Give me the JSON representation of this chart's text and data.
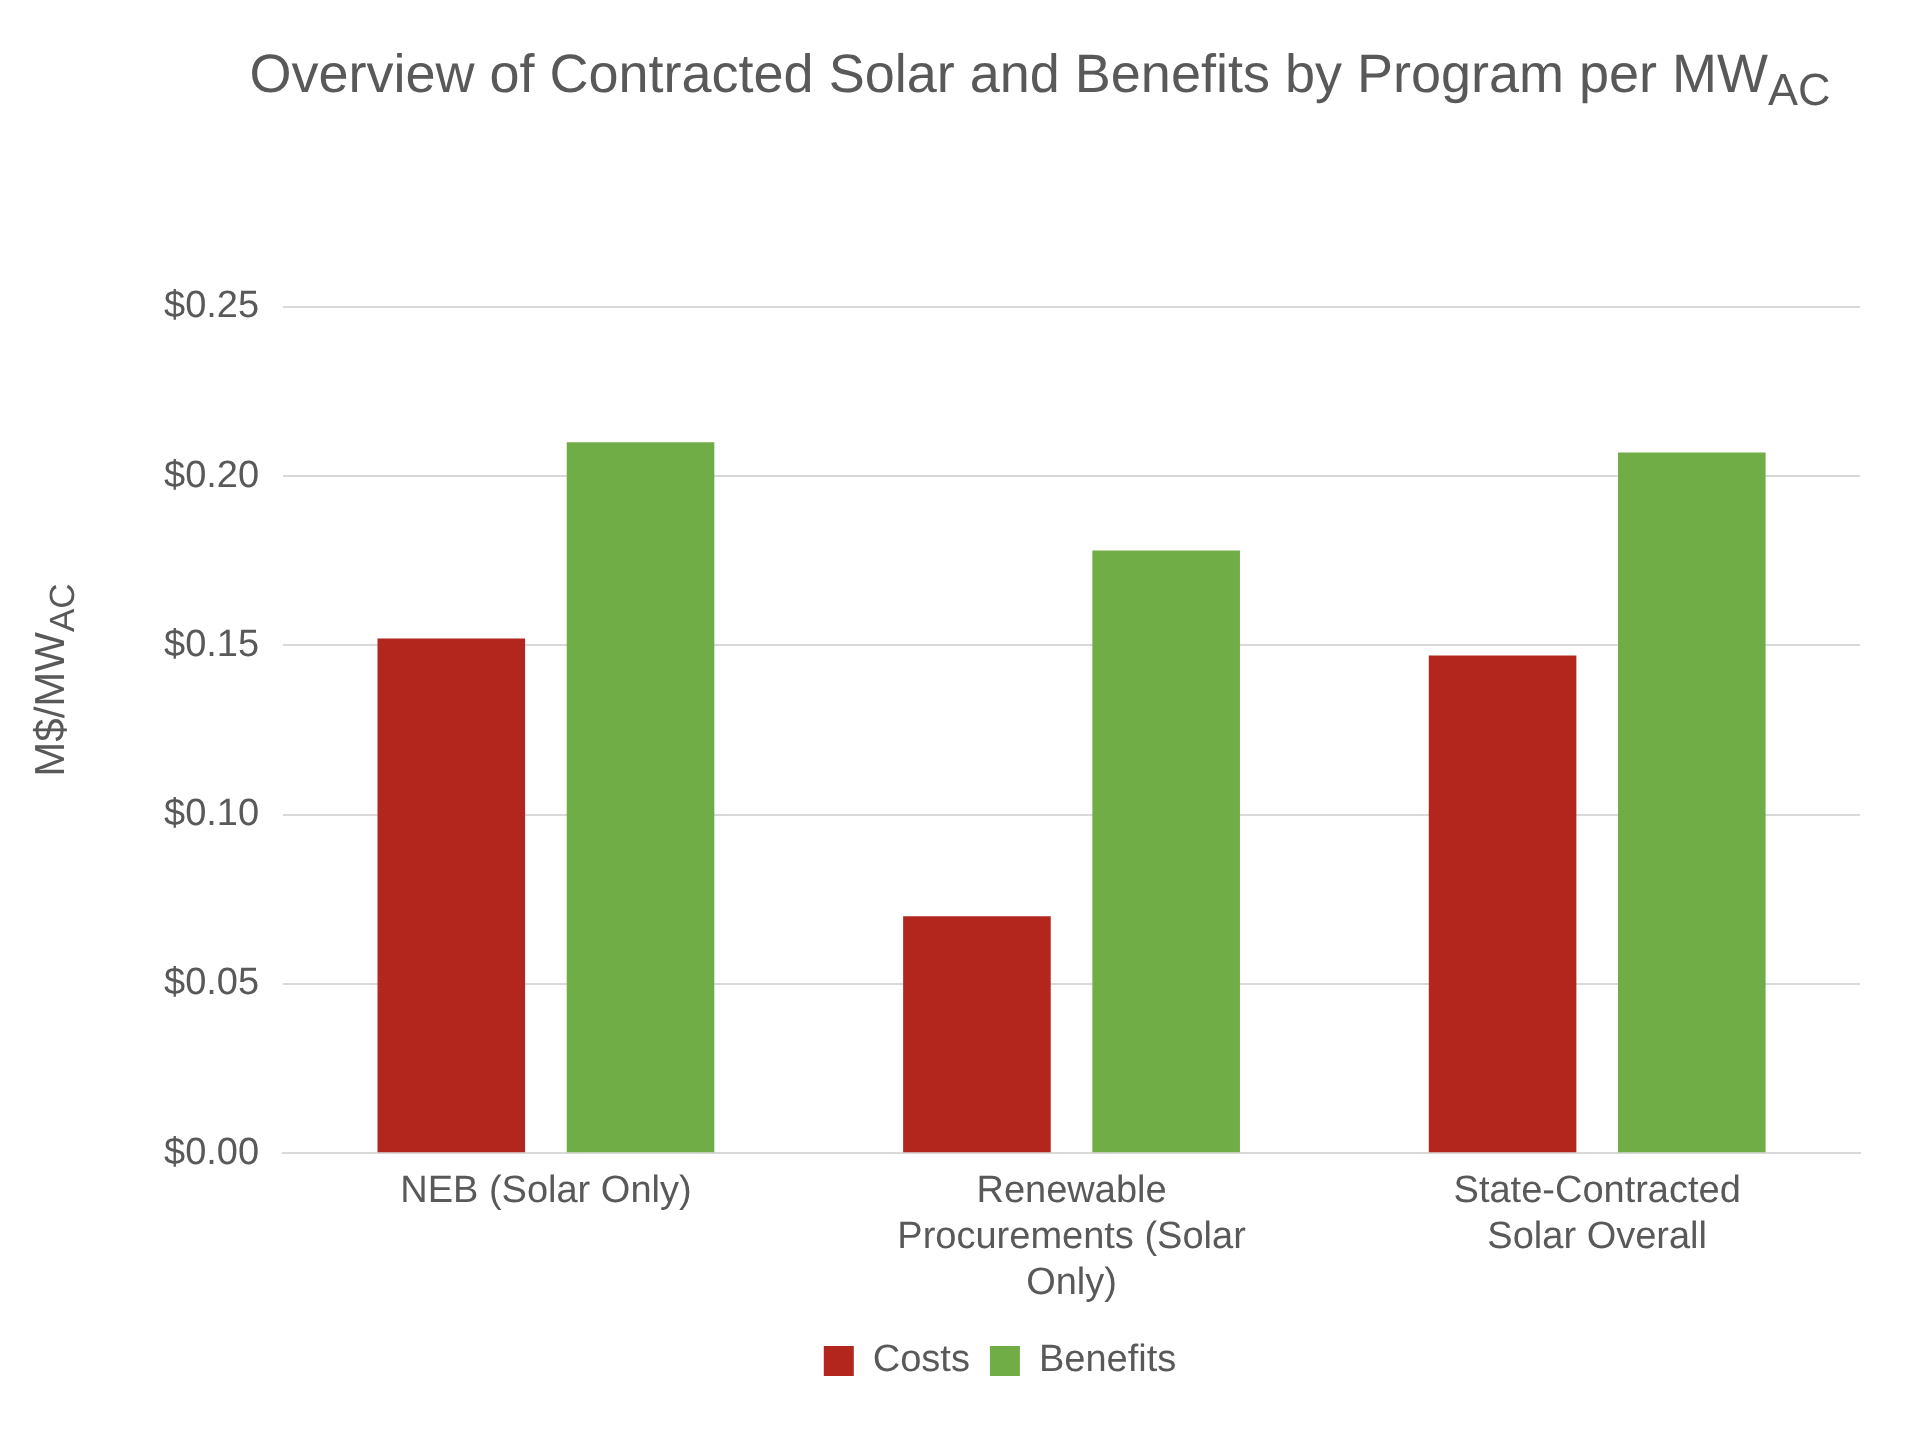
{
  "chart_data": {
    "type": "bar",
    "title": "Overview of Contracted Solar and Benefits by Program per MW$_{AC}$",
    "ylabel": "M$/MW$_{AC}$",
    "categories": [
      "NEB (Solar Only)",
      "Renewable Procurements (Solar Only)",
      "State-Contracted Solar Overall"
    ],
    "series": [
      {
        "name": "Costs",
        "color": "#b3261e",
        "values": [
          0.152,
          0.07,
          0.147
        ]
      },
      {
        "name": "Benefits",
        "color": "#70ad47",
        "values": [
          0.21,
          0.178,
          0.207
        ]
      }
    ],
    "ylim": [
      0,
      0.25
    ],
    "yticks": [
      {
        "value": 0,
        "label": "$0.00"
      },
      {
        "value": 0.05,
        "label": "$0.05"
      },
      {
        "value": 0.1,
        "label": "$0.10"
      },
      {
        "value": 0.15,
        "label": "$0.15"
      },
      {
        "value": 0.2,
        "label": "$0.20"
      },
      {
        "value": 0.25,
        "label": "$0.25"
      }
    ],
    "grid": "y",
    "legend": "bottom"
  }
}
